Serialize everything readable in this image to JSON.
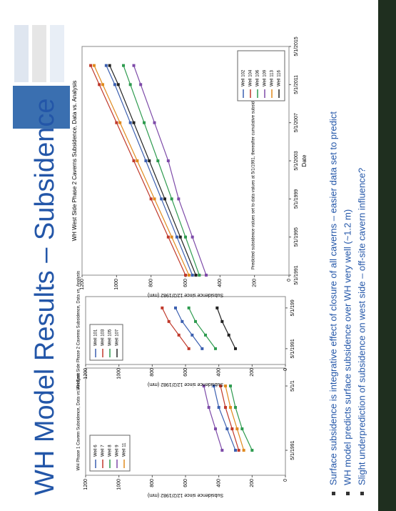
{
  "slide": {
    "title": "WH Model Results – Subsidence",
    "bullets": [
      "Surface subsidence is integrative effect of closure of all caverns – easier data set to predict",
      "WH model predicts surface subsidence over WH very well (~1.2 m)",
      "Slight underprediction of subsidence on west side – off-site cavern influence?"
    ]
  },
  "chart_data": [
    {
      "type": "line",
      "title": "WH Phase 1 Cavern Subsidence, Data vs. Analysis",
      "y_label": "Subsidence since 12/2/1982 (mm)",
      "x": [
        1991.33,
        1993.33,
        1995.33,
        1997.33
      ],
      "xlim": [
        1989,
        1999
      ],
      "xticks": [
        {
          "value": 1991.33,
          "label": "5/1/1991"
        },
        {
          "value": 1997.33,
          "label": "5/1/1"
        }
      ],
      "ylim": [
        0,
        1200
      ],
      "yticks": [
        0,
        200,
        400,
        600,
        800,
        1000,
        1200
      ],
      "legend": "upper left",
      "series": [
        {
          "name": "Well 6",
          "color": "#3b5fb0",
          "values": [
            300,
            350,
            400,
            430
          ]
        },
        {
          "name": "Well 7",
          "color": "#c0392b",
          "values": [
            280,
            320,
            360,
            390
          ]
        },
        {
          "name": "Well 8",
          "color": "#2e9b4f",
          "values": [
            200,
            260,
            300,
            330
          ]
        },
        {
          "name": "Well 9",
          "color": "#7d4aa8",
          "values": [
            380,
            420,
            460,
            490
          ]
        },
        {
          "name": "Well 11",
          "color": "#e08a1e",
          "values": [
            250,
            290,
            330,
            360
          ]
        }
      ]
    },
    {
      "type": "line",
      "title": "WH East Side Phase 2 Caverns Subsidence, Data vs. Analysis",
      "y_label": "Subsidence since 12/2/1982 (mm)",
      "x": [
        1991.33,
        1993.33,
        1995.33,
        1997.33
      ],
      "xlim": [
        1989,
        1999
      ],
      "xticks": [
        {
          "value": 1991.33,
          "label": "5/1/1991"
        },
        {
          "value": 1997.33,
          "label": "5/1/199"
        }
      ],
      "ylim": [
        0,
        1200
      ],
      "yticks": [
        0,
        200,
        400,
        600,
        800,
        1000,
        1200
      ],
      "legend": "upper left",
      "series": [
        {
          "name": "Well 101",
          "color": "#3b5fb0",
          "values": [
            500,
            560,
            620,
            660
          ]
        },
        {
          "name": "Well 103",
          "color": "#c0392b",
          "values": [
            580,
            640,
            700,
            740
          ]
        },
        {
          "name": "Well 105",
          "color": "#2e9b4f",
          "values": [
            420,
            480,
            540,
            580
          ]
        },
        {
          "name": "Well 107",
          "color": "#222222",
          "values": [
            300,
            340,
            380,
            410
          ]
        }
      ]
    },
    {
      "type": "line",
      "title": "WH West Side Phase 2 Caverns Subsidence, Data vs. Analysis",
      "y_label": "Subsidence since 12/2/1982 (mm)",
      "x_label": "Date",
      "annotation": "Predicted subsidence values set to data values at 5/1/1991, thereafter cumulative subsidence from predictions",
      "x": [
        1991.33,
        1995.33,
        1999.33,
        2003.33,
        2007.33,
        2011.33,
        2013.33
      ],
      "xlim": [
        1991.33,
        2015.33
      ],
      "xticks": [
        {
          "value": 1991.33,
          "label": "5/1/1991"
        },
        {
          "value": 1995.33,
          "label": "5/1/1995"
        },
        {
          "value": 1999.33,
          "label": "5/1/1999"
        },
        {
          "value": 2003.33,
          "label": "5/1/2003"
        },
        {
          "value": 2007.33,
          "label": "5/1/2007"
        },
        {
          "value": 2011.33,
          "label": "5/1/2011"
        },
        {
          "value": 2015.33,
          "label": "5/1/2015"
        }
      ],
      "ylim": [
        0,
        1200
      ],
      "yticks": [
        0,
        200,
        400,
        600,
        800,
        1000,
        1200
      ],
      "legend": "lower right",
      "series": [
        {
          "name": "Well 102",
          "color": "#3b5fb0",
          "values": [
            560,
            650,
            740,
            830,
            920,
            1010,
            1060
          ]
        },
        {
          "name": "Well 104",
          "color": "#c0392b",
          "values": [
            600,
            700,
            800,
            900,
            1000,
            1100,
            1150
          ]
        },
        {
          "name": "Well 106",
          "color": "#2e9b4f",
          "values": [
            520,
            600,
            680,
            760,
            840,
            920,
            960
          ]
        },
        {
          "name": "Well 109",
          "color": "#7d4aa8",
          "values": [
            480,
            560,
            640,
            700,
            780,
            860,
            900
          ]
        },
        {
          "name": "Well 113",
          "color": "#e08a1e",
          "values": [
            580,
            680,
            780,
            880,
            980,
            1080,
            1130
          ]
        },
        {
          "name": "Well 116",
          "color": "#222222",
          "values": [
            540,
            630,
            720,
            810,
            900,
            990,
            1040
          ]
        }
      ]
    }
  ]
}
